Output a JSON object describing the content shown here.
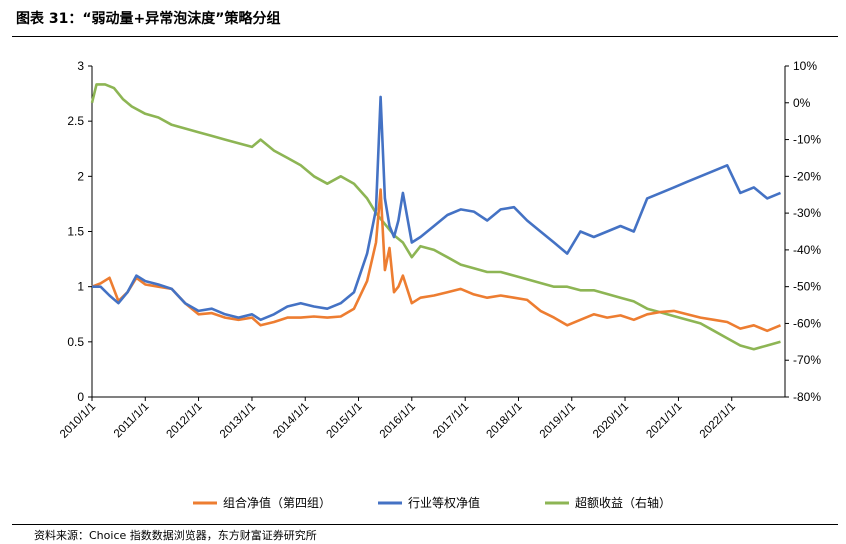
{
  "title": "图表 31：“弱动量+异常泡沫度”策略分组",
  "source": "资料来源：Choice 指数数据浏览器，东方财富证券研究所",
  "colors": {
    "series_1": "#ED7D31",
    "series_2": "#4472C4",
    "series_3": "#8DB554"
  },
  "chart_data": {
    "type": "line",
    "x_labels": [
      "2010/1/1",
      "2011/1/1",
      "2012/1/1",
      "2013/1/1",
      "2014/1/1",
      "2015/1/1",
      "2016/1/1",
      "2017/1/1",
      "2018/1/1",
      "2019/1/1",
      "2020/1/1",
      "2021/1/1",
      "2022/1/1"
    ],
    "x_start": "2010/1/1",
    "x_end": "2023/1/1",
    "y_left": {
      "ticks": [
        "0",
        "0.5",
        "1",
        "1.5",
        "2",
        "2.5",
        "3"
      ],
      "range": [
        0,
        3
      ]
    },
    "y_right": {
      "ticks": [
        "10%",
        "0%",
        "-10%",
        "-20%",
        "-30%",
        "-40%",
        "-50%",
        "-60%",
        "-70%",
        "-80%"
      ],
      "range": [
        -0.8,
        0.1
      ],
      "unit": "percent"
    },
    "grid": false,
    "legend_position": "bottom",
    "series": [
      {
        "name": "组合净值（第四组）",
        "axis": "left",
        "points": [
          [
            "2010/1/1",
            1.0
          ],
          [
            "2010/3/1",
            1.03
          ],
          [
            "2010/5/1",
            1.08
          ],
          [
            "2010/7/1",
            0.87
          ],
          [
            "2010/9/1",
            0.95
          ],
          [
            "2010/11/1",
            1.08
          ],
          [
            "2011/1/1",
            1.02
          ],
          [
            "2011/4/1",
            1.0
          ],
          [
            "2011/7/1",
            0.98
          ],
          [
            "2011/10/1",
            0.85
          ],
          [
            "2012/1/1",
            0.75
          ],
          [
            "2012/4/1",
            0.76
          ],
          [
            "2012/7/1",
            0.72
          ],
          [
            "2012/10/1",
            0.7
          ],
          [
            "2013/1/1",
            0.72
          ],
          [
            "2013/3/1",
            0.65
          ],
          [
            "2013/6/1",
            0.68
          ],
          [
            "2013/9/1",
            0.72
          ],
          [
            "2013/12/1",
            0.72
          ],
          [
            "2014/3/1",
            0.73
          ],
          [
            "2014/6/1",
            0.72
          ],
          [
            "2014/9/1",
            0.73
          ],
          [
            "2014/12/1",
            0.8
          ],
          [
            "2015/3/1",
            1.05
          ],
          [
            "2015/5/1",
            1.4
          ],
          [
            "2015/6/1",
            1.88
          ],
          [
            "2015/7/1",
            1.15
          ],
          [
            "2015/8/1",
            1.35
          ],
          [
            "2015/9/1",
            0.95
          ],
          [
            "2015/10/1",
            1.0
          ],
          [
            "2015/11/1",
            1.1
          ],
          [
            "2016/1/1",
            0.85
          ],
          [
            "2016/3/1",
            0.9
          ],
          [
            "2016/6/1",
            0.92
          ],
          [
            "2016/9/1",
            0.95
          ],
          [
            "2016/12/1",
            0.98
          ],
          [
            "2017/3/1",
            0.93
          ],
          [
            "2017/6/1",
            0.9
          ],
          [
            "2017/9/1",
            0.92
          ],
          [
            "2017/12/1",
            0.9
          ],
          [
            "2018/3/1",
            0.88
          ],
          [
            "2018/6/1",
            0.78
          ],
          [
            "2018/9/1",
            0.72
          ],
          [
            "2018/12/1",
            0.65
          ],
          [
            "2019/3/1",
            0.7
          ],
          [
            "2019/6/1",
            0.75
          ],
          [
            "2019/9/1",
            0.72
          ],
          [
            "2019/12/1",
            0.74
          ],
          [
            "2020/3/1",
            0.7
          ],
          [
            "2020/6/1",
            0.75
          ],
          [
            "2020/9/1",
            0.77
          ],
          [
            "2020/12/1",
            0.78
          ],
          [
            "2021/3/1",
            0.75
          ],
          [
            "2021/6/1",
            0.72
          ],
          [
            "2021/9/1",
            0.7
          ],
          [
            "2021/12/1",
            0.68
          ],
          [
            "2022/3/1",
            0.62
          ],
          [
            "2022/6/1",
            0.65
          ],
          [
            "2022/9/1",
            0.6
          ],
          [
            "2022/12/1",
            0.65
          ]
        ]
      },
      {
        "name": "行业等权净值",
        "axis": "left",
        "points": [
          [
            "2010/1/1",
            1.0
          ],
          [
            "2010/3/1",
            1.0
          ],
          [
            "2010/5/1",
            0.92
          ],
          [
            "2010/7/1",
            0.85
          ],
          [
            "2010/9/1",
            0.95
          ],
          [
            "2010/11/1",
            1.1
          ],
          [
            "2011/1/1",
            1.05
          ],
          [
            "2011/4/1",
            1.02
          ],
          [
            "2011/7/1",
            0.98
          ],
          [
            "2011/10/1",
            0.85
          ],
          [
            "2012/1/1",
            0.78
          ],
          [
            "2012/4/1",
            0.8
          ],
          [
            "2012/7/1",
            0.75
          ],
          [
            "2012/10/1",
            0.72
          ],
          [
            "2013/1/1",
            0.75
          ],
          [
            "2013/3/1",
            0.7
          ],
          [
            "2013/6/1",
            0.75
          ],
          [
            "2013/9/1",
            0.82
          ],
          [
            "2013/12/1",
            0.85
          ],
          [
            "2014/3/1",
            0.82
          ],
          [
            "2014/6/1",
            0.8
          ],
          [
            "2014/9/1",
            0.85
          ],
          [
            "2014/12/1",
            0.95
          ],
          [
            "2015/3/1",
            1.3
          ],
          [
            "2015/5/1",
            1.7
          ],
          [
            "2015/6/1",
            2.72
          ],
          [
            "2015/7/1",
            1.8
          ],
          [
            "2015/8/1",
            1.55
          ],
          [
            "2015/9/1",
            1.45
          ],
          [
            "2015/10/1",
            1.6
          ],
          [
            "2015/11/1",
            1.85
          ],
          [
            "2016/1/1",
            1.4
          ],
          [
            "2016/3/1",
            1.45
          ],
          [
            "2016/6/1",
            1.55
          ],
          [
            "2016/9/1",
            1.65
          ],
          [
            "2016/12/1",
            1.7
          ],
          [
            "2017/3/1",
            1.68
          ],
          [
            "2017/6/1",
            1.6
          ],
          [
            "2017/9/1",
            1.7
          ],
          [
            "2017/12/1",
            1.72
          ],
          [
            "2018/3/1",
            1.6
          ],
          [
            "2018/6/1",
            1.5
          ],
          [
            "2018/9/1",
            1.4
          ],
          [
            "2018/12/1",
            1.3
          ],
          [
            "2019/3/1",
            1.5
          ],
          [
            "2019/6/1",
            1.45
          ],
          [
            "2019/9/1",
            1.5
          ],
          [
            "2019/12/1",
            1.55
          ],
          [
            "2020/3/1",
            1.5
          ],
          [
            "2020/6/1",
            1.8
          ],
          [
            "2020/9/1",
            1.85
          ],
          [
            "2020/12/1",
            1.9
          ],
          [
            "2021/3/1",
            1.95
          ],
          [
            "2021/6/1",
            2.0
          ],
          [
            "2021/9/1",
            2.05
          ],
          [
            "2021/12/1",
            2.1
          ],
          [
            "2022/3/1",
            1.85
          ],
          [
            "2022/6/1",
            1.9
          ],
          [
            "2022/9/1",
            1.8
          ],
          [
            "2022/12/1",
            1.85
          ]
        ]
      },
      {
        "name": "超额收益（右轴）",
        "axis": "right",
        "points": [
          [
            "2010/1/1",
            0.0
          ],
          [
            "2010/2/1",
            0.05
          ],
          [
            "2010/4/1",
            0.05
          ],
          [
            "2010/6/1",
            0.04
          ],
          [
            "2010/8/1",
            0.01
          ],
          [
            "2010/10/1",
            -0.01
          ],
          [
            "2011/1/1",
            -0.03
          ],
          [
            "2011/4/1",
            -0.04
          ],
          [
            "2011/7/1",
            -0.06
          ],
          [
            "2011/10/1",
            -0.07
          ],
          [
            "2012/1/1",
            -0.08
          ],
          [
            "2012/4/1",
            -0.09
          ],
          [
            "2012/7/1",
            -0.1
          ],
          [
            "2012/10/1",
            -0.11
          ],
          [
            "2013/1/1",
            -0.12
          ],
          [
            "2013/3/1",
            -0.1
          ],
          [
            "2013/6/1",
            -0.13
          ],
          [
            "2013/9/1",
            -0.15
          ],
          [
            "2013/12/1",
            -0.17
          ],
          [
            "2014/3/1",
            -0.2
          ],
          [
            "2014/6/1",
            -0.22
          ],
          [
            "2014/9/1",
            -0.2
          ],
          [
            "2014/12/1",
            -0.22
          ],
          [
            "2015/3/1",
            -0.26
          ],
          [
            "2015/5/1",
            -0.3
          ],
          [
            "2015/7/1",
            -0.33
          ],
          [
            "2015/9/1",
            -0.36
          ],
          [
            "2015/11/1",
            -0.38
          ],
          [
            "2016/1/1",
            -0.42
          ],
          [
            "2016/3/1",
            -0.39
          ],
          [
            "2016/6/1",
            -0.4
          ],
          [
            "2016/9/1",
            -0.42
          ],
          [
            "2016/12/1",
            -0.44
          ],
          [
            "2017/3/1",
            -0.45
          ],
          [
            "2017/6/1",
            -0.46
          ],
          [
            "2017/9/1",
            -0.46
          ],
          [
            "2017/12/1",
            -0.47
          ],
          [
            "2018/3/1",
            -0.48
          ],
          [
            "2018/6/1",
            -0.49
          ],
          [
            "2018/9/1",
            -0.5
          ],
          [
            "2018/12/1",
            -0.5
          ],
          [
            "2019/3/1",
            -0.51
          ],
          [
            "2019/6/1",
            -0.51
          ],
          [
            "2019/9/1",
            -0.52
          ],
          [
            "2019/12/1",
            -0.53
          ],
          [
            "2020/3/1",
            -0.54
          ],
          [
            "2020/6/1",
            -0.56
          ],
          [
            "2020/9/1",
            -0.57
          ],
          [
            "2020/12/1",
            -0.58
          ],
          [
            "2021/3/1",
            -0.59
          ],
          [
            "2021/6/1",
            -0.6
          ],
          [
            "2021/9/1",
            -0.62
          ],
          [
            "2021/12/1",
            -0.64
          ],
          [
            "2022/3/1",
            -0.66
          ],
          [
            "2022/6/1",
            -0.67
          ],
          [
            "2022/9/1",
            -0.66
          ],
          [
            "2022/12/1",
            -0.65
          ]
        ]
      }
    ]
  }
}
